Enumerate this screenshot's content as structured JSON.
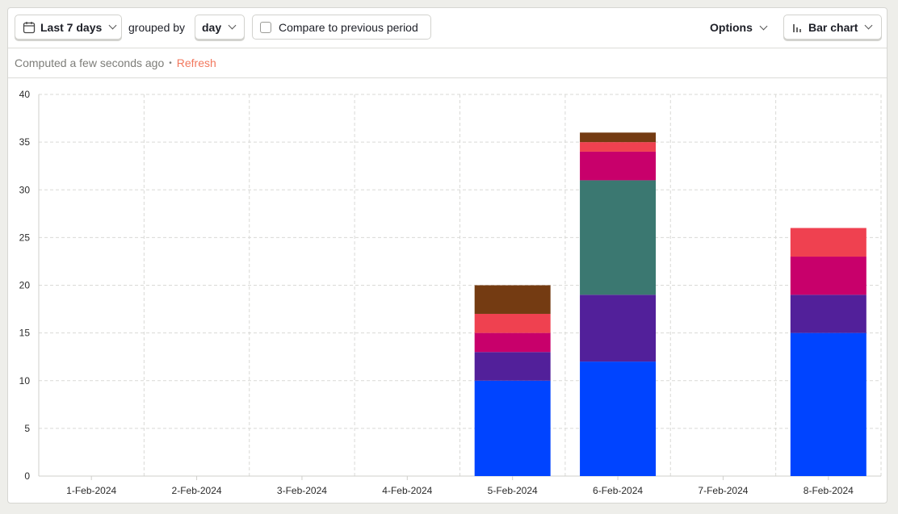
{
  "toolbar": {
    "date_range_label": "Last 7 days",
    "grouped_by_label": "grouped by",
    "interval_label": "day",
    "compare_label": "Compare to previous period",
    "options_label": "Options",
    "chart_type_label": "Bar chart"
  },
  "status": {
    "computed_text": "Computed a few seconds ago",
    "separator": "•",
    "refresh_label": "Refresh"
  },
  "chart_data": {
    "type": "bar",
    "stacked": true,
    "categories": [
      "1-Feb-2024",
      "2-Feb-2024",
      "3-Feb-2024",
      "4-Feb-2024",
      "5-Feb-2024",
      "6-Feb-2024",
      "7-Feb-2024",
      "8-Feb-2024"
    ],
    "series": [
      {
        "color": "#0044ff",
        "values": [
          0,
          0,
          0,
          0,
          10,
          12,
          0,
          15
        ]
      },
      {
        "color": "#52209a",
        "values": [
          0,
          0,
          0,
          0,
          3,
          7,
          0,
          4
        ]
      },
      {
        "color": "#3b7871",
        "values": [
          0,
          0,
          0,
          0,
          0,
          12,
          0,
          0
        ]
      },
      {
        "color": "#c8006b",
        "values": [
          0,
          0,
          0,
          0,
          2,
          3,
          0,
          4
        ]
      },
      {
        "color": "#ef4150",
        "values": [
          0,
          0,
          0,
          0,
          2,
          1,
          0,
          3
        ]
      },
      {
        "color": "#743b12",
        "values": [
          0,
          0,
          0,
          0,
          3,
          1,
          0,
          0
        ]
      }
    ],
    "yticks": [
      0,
      5,
      10,
      15,
      20,
      25,
      30,
      35,
      40
    ],
    "ylim": [
      0,
      40
    ],
    "grid": true,
    "legend": "none"
  }
}
